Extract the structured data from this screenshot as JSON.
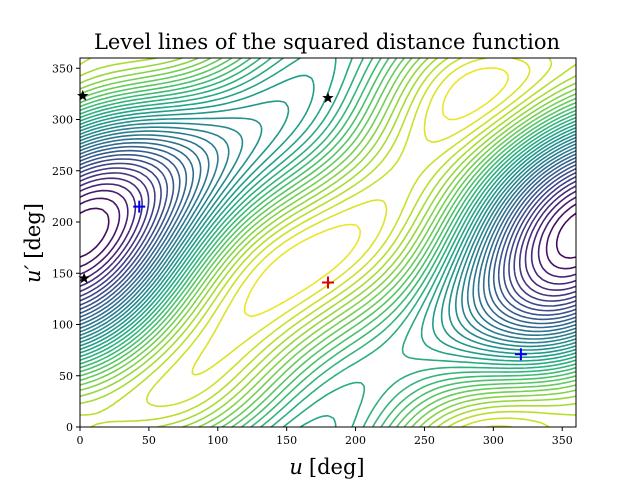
{
  "chart_data": {
    "type": "contour",
    "title": "Level lines of the squared distance function",
    "xlabel_var": "u",
    "xlabel_unit": "[deg]",
    "ylabel_var": "u′",
    "ylabel_unit": "[deg]",
    "xlim": [
      0,
      360
    ],
    "ylim": [
      0,
      360
    ],
    "xticks": [
      0,
      50,
      100,
      150,
      200,
      250,
      300,
      350
    ],
    "yticks": [
      0,
      50,
      100,
      150,
      200,
      250,
      300,
      350
    ],
    "colormap": "viridis",
    "markers": {
      "minimum": {
        "symbol": "plus",
        "color": "#dd0000",
        "points": [
          [
            180,
            141
          ]
        ]
      },
      "saddle": {
        "symbol": "plus",
        "color": "#0000ee",
        "points": [
          [
            43,
            215
          ],
          [
            320,
            71
          ]
        ]
      },
      "maximum": {
        "symbol": "star",
        "color": "#000000",
        "points": [
          [
            2,
            323
          ],
          [
            3,
            145
          ],
          [
            180,
            321
          ]
        ]
      }
    }
  }
}
